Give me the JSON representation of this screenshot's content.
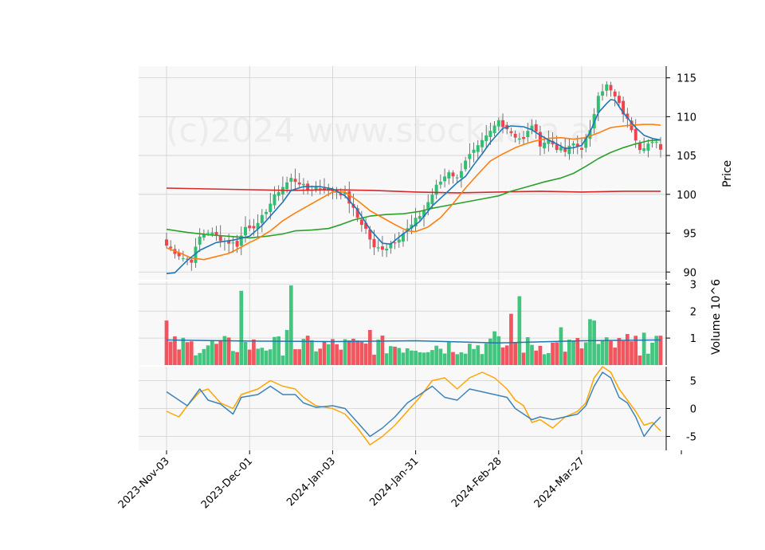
{
  "chart_data": {
    "type": "candlestick",
    "watermark": "(c)2024 www.stockdata.ai",
    "x_tick_labels": [
      "2023-Nov-03",
      "2023-Dec-01",
      "2024-Jan-03",
      "2024-Jan-31",
      "2024-Feb-28",
      "2024-Mar-27"
    ],
    "x_tick_bar_index": [
      0,
      20,
      40,
      60,
      80,
      100
    ],
    "bar_count": 120,
    "colors": {
      "up": "#2fbf71",
      "down": "#f0434c",
      "sma_fast": "#1f77b4",
      "sma_mid": "#ff7f0e",
      "sma_slow": "#2ca02c",
      "sma_long": "#d62728",
      "macd": "#3e82b8",
      "signal": "#ffa500",
      "grid": "#cfcfcf",
      "panel_bg": "#f8f8f8"
    },
    "price_panel": {
      "ylabel": "Price",
      "ylim": [
        89,
        116.5
      ],
      "yticks": [
        90,
        95,
        100,
        105,
        110,
        115
      ],
      "close_anchors": [
        [
          0,
          93.4
        ],
        [
          4,
          91.8
        ],
        [
          6,
          91.5
        ],
        [
          8,
          94.5
        ],
        [
          10,
          95.2
        ],
        [
          14,
          94.0
        ],
        [
          17,
          93.5
        ],
        [
          19,
          95.8
        ],
        [
          22,
          96.0
        ],
        [
          24,
          98.0
        ],
        [
          27,
          100.5
        ],
        [
          30,
          102.0
        ],
        [
          32,
          101.5
        ],
        [
          34,
          100.5
        ],
        [
          36,
          101.0
        ],
        [
          40,
          100.5
        ],
        [
          43,
          100.0
        ],
        [
          46,
          97.0
        ],
        [
          48,
          95.5
        ],
        [
          50,
          93.0
        ],
        [
          53,
          93.2
        ],
        [
          56,
          94.5
        ],
        [
          59,
          96.0
        ],
        [
          62,
          98.0
        ],
        [
          65,
          101.0
        ],
        [
          68,
          103.0
        ],
        [
          70,
          102.0
        ],
        [
          72,
          104.5
        ],
        [
          75,
          106.0
        ],
        [
          78,
          108.0
        ],
        [
          80,
          109.5
        ],
        [
          82,
          108.5
        ],
        [
          84,
          107.5
        ],
        [
          86,
          107.0
        ],
        [
          88,
          109.0
        ],
        [
          90,
          106.5
        ],
        [
          92,
          107.0
        ],
        [
          94,
          106.0
        ],
        [
          96,
          105.5
        ],
        [
          98,
          106.5
        ],
        [
          100,
          106.0
        ],
        [
          102,
          108.0
        ],
        [
          104,
          113.0
        ],
        [
          106,
          114.0
        ],
        [
          108,
          112.5
        ],
        [
          110,
          110.5
        ],
        [
          112,
          108.5
        ],
        [
          114,
          106.0
        ],
        [
          116,
          106.5
        ],
        [
          118,
          106.5
        ],
        [
          119,
          106.0
        ]
      ],
      "sma_fast": [
        [
          0,
          89.8
        ],
        [
          2,
          89.9
        ],
        [
          5,
          91.5
        ],
        [
          8,
          92.8
        ],
        [
          12,
          93.8
        ],
        [
          16,
          94.1
        ],
        [
          20,
          94.6
        ],
        [
          23,
          96.0
        ],
        [
          26,
          97.8
        ],
        [
          28,
          99.0
        ],
        [
          30,
          100.5
        ],
        [
          33,
          101.0
        ],
        [
          37,
          101.0
        ],
        [
          40,
          100.7
        ],
        [
          43,
          99.8
        ],
        [
          46,
          98.0
        ],
        [
          49,
          95.5
        ],
        [
          52,
          93.7
        ],
        [
          54,
          93.6
        ],
        [
          56,
          94.5
        ],
        [
          58,
          95.3
        ],
        [
          61,
          96.5
        ],
        [
          64,
          98.5
        ],
        [
          67,
          100.0
        ],
        [
          70,
          101.5
        ],
        [
          72,
          102.3
        ],
        [
          74,
          103.8
        ],
        [
          76,
          105.2
        ],
        [
          78,
          106.7
        ],
        [
          81,
          108.5
        ],
        [
          83,
          108.8
        ],
        [
          86,
          108.7
        ],
        [
          88,
          108.3
        ],
        [
          90,
          107.6
        ],
        [
          92,
          107.0
        ],
        [
          94,
          106.5
        ],
        [
          96,
          105.9
        ],
        [
          98,
          106.0
        ],
        [
          100,
          106.3
        ],
        [
          102,
          108.0
        ],
        [
          104,
          110.5
        ],
        [
          106,
          111.7
        ],
        [
          107,
          112.2
        ],
        [
          108,
          112.1
        ],
        [
          110,
          110.5
        ],
        [
          113,
          108.6
        ],
        [
          115,
          107.6
        ],
        [
          117,
          107.2
        ],
        [
          119,
          107.0
        ]
      ],
      "sma_mid": [
        [
          0,
          93.1
        ],
        [
          3,
          92.5
        ],
        [
          6,
          91.8
        ],
        [
          9,
          91.6
        ],
        [
          12,
          92.0
        ],
        [
          15,
          92.4
        ],
        [
          18,
          93.2
        ],
        [
          20,
          93.8
        ],
        [
          22,
          94.3
        ],
        [
          25,
          95.3
        ],
        [
          28,
          96.6
        ],
        [
          31,
          97.6
        ],
        [
          34,
          98.5
        ],
        [
          37,
          99.4
        ],
        [
          40,
          100.3
        ],
        [
          43,
          100.3
        ],
        [
          46,
          99.2
        ],
        [
          49,
          97.9
        ],
        [
          52,
          97.0
        ],
        [
          55,
          96.1
        ],
        [
          58,
          95.3
        ],
        [
          60,
          95.2
        ],
        [
          63,
          95.8
        ],
        [
          66,
          97.0
        ],
        [
          69,
          98.8
        ],
        [
          72,
          100.8
        ],
        [
          75,
          102.6
        ],
        [
          78,
          104.3
        ],
        [
          81,
          105.2
        ],
        [
          84,
          106.0
        ],
        [
          87,
          106.6
        ],
        [
          89,
          106.9
        ],
        [
          92,
          107.2
        ],
        [
          95,
          107.3
        ],
        [
          98,
          107.1
        ],
        [
          101,
          107.3
        ],
        [
          104,
          107.9
        ],
        [
          107,
          108.6
        ],
        [
          110,
          108.8
        ],
        [
          112,
          108.9
        ],
        [
          115,
          109.0
        ],
        [
          117,
          109.0
        ],
        [
          119,
          108.9
        ]
      ],
      "sma_slow": [
        [
          0,
          95.5
        ],
        [
          5,
          95.1
        ],
        [
          10,
          94.8
        ],
        [
          15,
          94.6
        ],
        [
          20,
          94.4
        ],
        [
          24,
          94.6
        ],
        [
          28,
          94.9
        ],
        [
          31,
          95.3
        ],
        [
          35,
          95.4
        ],
        [
          39,
          95.6
        ],
        [
          42,
          96.1
        ],
        [
          45,
          96.7
        ],
        [
          49,
          97.2
        ],
        [
          53,
          97.4
        ],
        [
          57,
          97.5
        ],
        [
          61,
          97.8
        ],
        [
          64,
          98.2
        ],
        [
          68,
          98.6
        ],
        [
          72,
          99.0
        ],
        [
          76,
          99.4
        ],
        [
          80,
          99.8
        ],
        [
          83,
          100.4
        ],
        [
          87,
          101.0
        ],
        [
          91,
          101.6
        ],
        [
          95,
          102.1
        ],
        [
          98,
          102.7
        ],
        [
          101,
          103.6
        ],
        [
          104,
          104.6
        ],
        [
          107,
          105.4
        ],
        [
          110,
          106.0
        ],
        [
          113,
          106.5
        ],
        [
          116,
          106.9
        ],
        [
          119,
          107.0
        ]
      ],
      "sma_long": [
        [
          0,
          100.8
        ],
        [
          10,
          100.7
        ],
        [
          20,
          100.6
        ],
        [
          30,
          100.5
        ],
        [
          40,
          100.6
        ],
        [
          50,
          100.5
        ],
        [
          60,
          100.3
        ],
        [
          70,
          100.2
        ],
        [
          80,
          100.3
        ],
        [
          90,
          100.4
        ],
        [
          100,
          100.3
        ],
        [
          110,
          100.4
        ],
        [
          119,
          100.4
        ]
      ]
    },
    "volume_panel": {
      "ylabel": "Volume  10^6",
      "ylim": [
        0,
        3.1
      ],
      "yticks": [
        1,
        2,
        3
      ],
      "unit": "millions",
      "spikes": [
        [
          0,
          1.65
        ],
        [
          18,
          2.75
        ],
        [
          29,
          1.3
        ],
        [
          30,
          2.95
        ],
        [
          49,
          1.3
        ],
        [
          79,
          1.25
        ],
        [
          83,
          1.9
        ],
        [
          85,
          2.55
        ],
        [
          95,
          1.4
        ],
        [
          102,
          1.7
        ],
        [
          103,
          1.65
        ],
        [
          111,
          1.15
        ],
        [
          115,
          1.2
        ]
      ],
      "avg_line": [
        [
          0,
          0.93
        ],
        [
          20,
          0.89
        ],
        [
          40,
          0.87
        ],
        [
          60,
          0.9
        ],
        [
          80,
          0.82
        ],
        [
          100,
          0.9
        ],
        [
          119,
          0.93
        ]
      ]
    },
    "macd_panel": {
      "ylim": [
        -7.5,
        7.5
      ],
      "yticks": [
        -5,
        0,
        5
      ],
      "macd": [
        [
          0,
          3.0
        ],
        [
          3,
          1.5
        ],
        [
          5,
          0.5
        ],
        [
          8,
          3.5
        ],
        [
          10,
          1.5
        ],
        [
          13,
          0.8
        ],
        [
          16,
          -1.0
        ],
        [
          18,
          2.0
        ],
        [
          22,
          2.5
        ],
        [
          25,
          4.0
        ],
        [
          28,
          2.5
        ],
        [
          31,
          2.5
        ],
        [
          33,
          1.0
        ],
        [
          36,
          0.2
        ],
        [
          40,
          0.5
        ],
        [
          43,
          0.0
        ],
        [
          46,
          -2.5
        ],
        [
          49,
          -5.0
        ],
        [
          52,
          -3.5
        ],
        [
          55,
          -1.5
        ],
        [
          58,
          1.0
        ],
        [
          61,
          2.5
        ],
        [
          64,
          4.0
        ],
        [
          67,
          2.0
        ],
        [
          70,
          1.5
        ],
        [
          73,
          3.5
        ],
        [
          76,
          3.0
        ],
        [
          79,
          2.5
        ],
        [
          82,
          2.0
        ],
        [
          84,
          0.0
        ],
        [
          86,
          -1.0
        ],
        [
          88,
          -2.0
        ],
        [
          90,
          -1.5
        ],
        [
          93,
          -2.0
        ],
        [
          96,
          -1.5
        ],
        [
          99,
          -1.0
        ],
        [
          101,
          0.5
        ],
        [
          103,
          4.0
        ],
        [
          105,
          6.5
        ],
        [
          107,
          5.5
        ],
        [
          109,
          2.0
        ],
        [
          111,
          1.0
        ],
        [
          113,
          -1.5
        ],
        [
          115,
          -5.0
        ],
        [
          117,
          -3.0
        ],
        [
          119,
          -1.5
        ]
      ],
      "signal": [
        [
          0,
          -0.5
        ],
        [
          3,
          -1.5
        ],
        [
          5,
          0.5
        ],
        [
          8,
          3.0
        ],
        [
          10,
          3.5
        ],
        [
          13,
          1.0
        ],
        [
          16,
          0.0
        ],
        [
          18,
          2.5
        ],
        [
          22,
          3.5
        ],
        [
          25,
          5.0
        ],
        [
          28,
          4.0
        ],
        [
          31,
          3.5
        ],
        [
          33,
          2.0
        ],
        [
          36,
          0.5
        ],
        [
          40,
          0.0
        ],
        [
          43,
          -1.0
        ],
        [
          46,
          -3.5
        ],
        [
          49,
          -6.5
        ],
        [
          52,
          -5.0
        ],
        [
          55,
          -3.0
        ],
        [
          58,
          -0.5
        ],
        [
          61,
          2.0
        ],
        [
          64,
          5.0
        ],
        [
          67,
          5.5
        ],
        [
          70,
          3.5
        ],
        [
          73,
          5.5
        ],
        [
          76,
          6.5
        ],
        [
          79,
          5.5
        ],
        [
          82,
          3.5
        ],
        [
          84,
          1.5
        ],
        [
          86,
          0.5
        ],
        [
          88,
          -2.5
        ],
        [
          90,
          -2.0
        ],
        [
          93,
          -3.5
        ],
        [
          96,
          -1.5
        ],
        [
          99,
          -0.5
        ],
        [
          101,
          1.0
        ],
        [
          103,
          5.5
        ],
        [
          105,
          7.5
        ],
        [
          107,
          6.5
        ],
        [
          109,
          3.5
        ],
        [
          111,
          1.5
        ],
        [
          113,
          -0.5
        ],
        [
          115,
          -3.0
        ],
        [
          117,
          -2.5
        ],
        [
          119,
          -4.0
        ]
      ]
    }
  }
}
